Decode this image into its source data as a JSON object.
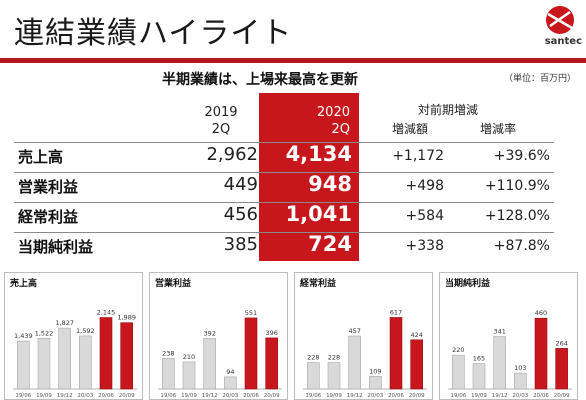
{
  "header": {
    "title": "連結業績ハイライト",
    "logo_text": "santec"
  },
  "summary": {
    "headline": "半期業績は、上場来最高を更新",
    "unit": "（単位：百万円）"
  },
  "table": {
    "col_prev": [
      "2019",
      "2Q"
    ],
    "col_curr": [
      "2020",
      "2Q"
    ],
    "col_change": "対前期増減",
    "col_diff": "増減額",
    "col_rate": "増減率",
    "rows": [
      {
        "label": "売上高",
        "prev": "2,962",
        "curr": "4,134",
        "diff": "+1,172",
        "rate": "+39.6%"
      },
      {
        "label": "営業利益",
        "prev": "449",
        "curr": "948",
        "diff": "+498",
        "rate": "+110.9%"
      },
      {
        "label": "経常利益",
        "prev": "456",
        "curr": "1,041",
        "diff": "+584",
        "rate": "+128.0%"
      },
      {
        "label": "当期純利益",
        "prev": "385",
        "curr": "724",
        "diff": "+338",
        "rate": "+87.8%"
      }
    ]
  },
  "colors": {
    "accent": "#c8161d",
    "gray_bar": "#d9d9d9"
  },
  "chart_data": [
    {
      "type": "bar",
      "title": "売上高",
      "categories": [
        "19/06",
        "19/09",
        "19/12",
        "20/03",
        "20/06",
        "20/09"
      ],
      "values": [
        1439,
        1522,
        1827,
        1592,
        2145,
        1989
      ],
      "labels": [
        "1,439",
        "1,522",
        "1,827",
        "1,592",
        "2,145",
        "1,989"
      ],
      "highlight": [
        4,
        5
      ],
      "ylim": [
        0,
        2400
      ]
    },
    {
      "type": "bar",
      "title": "営業利益",
      "categories": [
        "19/06",
        "19/09",
        "19/12",
        "20/03",
        "20/06",
        "20/09"
      ],
      "values": [
        238,
        210,
        392,
        94,
        551,
        396
      ],
      "labels": [
        "238",
        "210",
        "392",
        "94",
        "551",
        "396"
      ],
      "highlight": [
        4,
        5
      ],
      "ylim": [
        0,
        620
      ]
    },
    {
      "type": "bar",
      "title": "経常利益",
      "categories": [
        "19/06",
        "19/09",
        "19/12",
        "20/03",
        "20/06",
        "20/09"
      ],
      "values": [
        228,
        228,
        457,
        109,
        617,
        424
      ],
      "labels": [
        "228",
        "228",
        "457",
        "109",
        "617",
        "424"
      ],
      "highlight": [
        4,
        5
      ],
      "ylim": [
        0,
        690
      ]
    },
    {
      "type": "bar",
      "title": "当期純利益",
      "categories": [
        "19/06",
        "19/09",
        "19/12",
        "20/03",
        "20/06",
        "20/09"
      ],
      "values": [
        220,
        165,
        341,
        103,
        460,
        264
      ],
      "labels": [
        "220",
        "165",
        "341",
        "103",
        "460",
        "264"
      ],
      "highlight": [
        4,
        5
      ],
      "ylim": [
        0,
        520
      ]
    }
  ]
}
